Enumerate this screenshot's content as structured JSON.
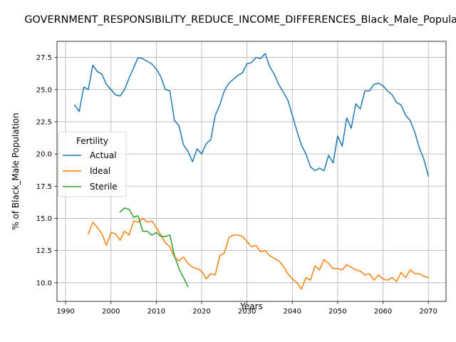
{
  "chart_data": {
    "type": "line",
    "title": "GOVERNMENT_RESPONSIBILITY_REDUCE_INCOME_DIFFERENCES_Black_Male_Population",
    "xlabel": "Years",
    "ylabel": "% of Black_Male Population",
    "xlim": [
      1988.1,
      2073.9
    ],
    "ylim": [
      8.55,
      28.75
    ],
    "xticks": [
      1990,
      2000,
      2010,
      2020,
      2030,
      2040,
      2050,
      2060,
      2070
    ],
    "yticks": [
      10.0,
      12.5,
      15.0,
      17.5,
      20.0,
      22.5,
      25.0,
      27.5
    ],
    "grid": true,
    "legend": {
      "title": "Fertility",
      "placement": "center-left"
    },
    "series": [
      {
        "name": "Actual",
        "color": "#1f77b4",
        "x": [
          1992,
          1993,
          1994,
          1995,
          1996,
          1997,
          1998,
          1999,
          2000,
          2001,
          2002,
          2003,
          2004,
          2005,
          2006,
          2007,
          2008,
          2009,
          2010,
          2011,
          2012,
          2013,
          2014,
          2015,
          2016,
          2017,
          2018,
          2019,
          2020,
          2021,
          2022,
          2023,
          2024,
          2025,
          2026,
          2027,
          2028,
          2029,
          2030,
          2031,
          2032,
          2033,
          2034,
          2035,
          2036,
          2037,
          2038,
          2039,
          2040,
          2041,
          2042,
          2043,
          2044,
          2045,
          2046,
          2047,
          2048,
          2049,
          2050,
          2051,
          2052,
          2053,
          2054,
          2055,
          2056,
          2057,
          2058,
          2059,
          2060,
          2061,
          2062,
          2063,
          2064,
          2065,
          2066,
          2067,
          2068,
          2069,
          2070
        ],
        "values": [
          23.8,
          23.3,
          25.2,
          25.0,
          26.9,
          26.4,
          26.2,
          25.4,
          25.0,
          24.6,
          24.5,
          25.0,
          25.9,
          26.7,
          27.5,
          27.4,
          27.2,
          27.0,
          26.6,
          26.0,
          25.0,
          24.9,
          22.6,
          22.2,
          20.7,
          20.2,
          19.4,
          20.4,
          20.0,
          20.8,
          21.1,
          23.0,
          23.8,
          24.9,
          25.5,
          25.8,
          26.1,
          26.3,
          27.0,
          27.1,
          27.5,
          27.4,
          27.8,
          26.8,
          26.2,
          25.4,
          24.8,
          24.2,
          23.0,
          21.8,
          20.7,
          20.0,
          19.0,
          18.7,
          18.9,
          18.7,
          19.9,
          19.3,
          21.4,
          20.6,
          22.8,
          22.0,
          23.9,
          23.5,
          24.9,
          24.9,
          25.4,
          25.5,
          25.3,
          24.9,
          24.6,
          24.0,
          23.8,
          23.0,
          22.6,
          21.7,
          20.5,
          19.6,
          18.3
        ]
      },
      {
        "name": "Ideal",
        "color": "#ff7f0e",
        "x": [
          1995,
          1996,
          1997,
          1998,
          1999,
          2000,
          2001,
          2002,
          2003,
          2004,
          2005,
          2006,
          2007,
          2008,
          2009,
          2010,
          2011,
          2012,
          2013,
          2014,
          2015,
          2016,
          2017,
          2018,
          2019,
          2020,
          2021,
          2022,
          2023,
          2024,
          2025,
          2026,
          2027,
          2028,
          2029,
          2030,
          2031,
          2032,
          2033,
          2034,
          2035,
          2036,
          2037,
          2038,
          2039,
          2040,
          2041,
          2042,
          2043,
          2044,
          2045,
          2046,
          2047,
          2048,
          2049,
          2050,
          2051,
          2052,
          2053,
          2054,
          2055,
          2056,
          2057,
          2058,
          2059,
          2060,
          2061,
          2062,
          2063,
          2064,
          2065,
          2066,
          2067,
          2068,
          2069,
          2070
        ],
        "values": [
          13.8,
          14.7,
          14.3,
          13.8,
          12.9,
          13.9,
          13.8,
          13.3,
          14.0,
          13.7,
          14.8,
          14.7,
          15.0,
          14.7,
          14.8,
          14.3,
          13.7,
          13.1,
          12.8,
          12.0,
          11.7,
          12.0,
          11.5,
          11.2,
          11.1,
          10.9,
          10.3,
          10.7,
          10.6,
          12.1,
          12.3,
          13.5,
          13.7,
          13.7,
          13.6,
          13.2,
          12.8,
          12.9,
          12.4,
          12.5,
          12.1,
          11.9,
          11.7,
          11.3,
          10.7,
          10.3,
          10.0,
          9.5,
          10.4,
          10.2,
          11.3,
          11.0,
          11.8,
          11.5,
          11.1,
          11.1,
          11.0,
          11.4,
          11.2,
          11.0,
          10.9,
          10.6,
          10.7,
          10.2,
          10.6,
          10.3,
          10.2,
          10.4,
          10.1,
          10.8,
          10.4,
          11.0,
          10.7,
          10.7,
          10.5,
          10.4
        ]
      },
      {
        "name": "Sterile",
        "color": "#2ca02c",
        "x": [
          2002,
          2003,
          2004,
          2005,
          2006,
          2007,
          2008,
          2009,
          2010,
          2011,
          2012,
          2013,
          2014,
          2015,
          2016,
          2017
        ],
        "values": [
          15.5,
          15.8,
          15.7,
          15.1,
          15.2,
          14.0,
          14.0,
          13.7,
          13.9,
          13.6,
          13.6,
          13.7,
          12.1,
          11.1,
          10.4,
          9.7
        ]
      }
    ]
  }
}
